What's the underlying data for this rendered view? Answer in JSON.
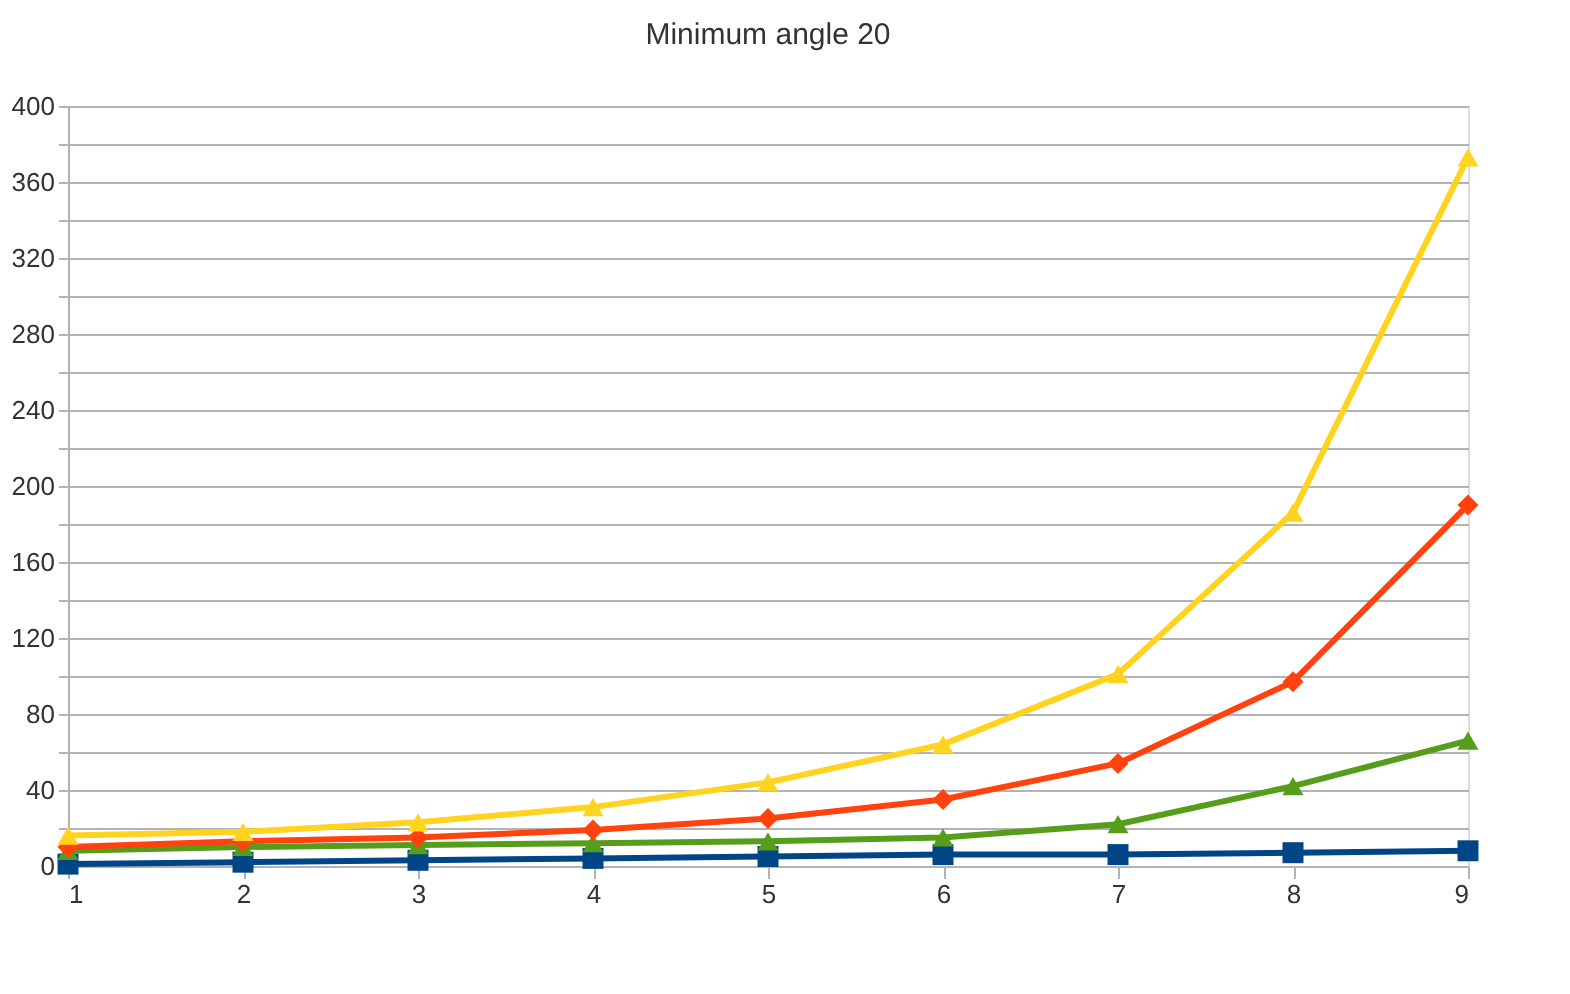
{
  "chart_data": {
    "type": "line",
    "title": "Minimum angle 20",
    "x": [
      1,
      2,
      3,
      4,
      5,
      6,
      7,
      8,
      9
    ],
    "xlim": [
      1,
      9
    ],
    "xticks": [
      1,
      2,
      3,
      4,
      5,
      6,
      7,
      8,
      9
    ],
    "ylim": [
      0,
      400
    ],
    "yticks": [
      0,
      {
        "value": 20,
        "label": null
      },
      40,
      {
        "value": 60,
        "label": null
      },
      80,
      {
        "value": 100,
        "label": null
      },
      120,
      {
        "value": 140,
        "label": null
      },
      160,
      {
        "value": 180,
        "label": null
      },
      200,
      {
        "value": 220,
        "label": null
      },
      240,
      {
        "value": 260,
        "label": null
      },
      280,
      {
        "value": 300,
        "label": null
      },
      320,
      {
        "value": 340,
        "label": null
      },
      360,
      {
        "value": 380,
        "label": null
      },
      400
    ],
    "grid": "y",
    "legend": false,
    "line_style": "solid",
    "series": [
      {
        "color": "#004586",
        "marker": "square",
        "values": [
          1,
          2,
          3,
          4,
          5,
          6,
          6,
          7,
          8
        ]
      },
      {
        "color": "#579d1c",
        "marker": "triangle",
        "values": [
          8,
          10,
          11,
          12,
          13,
          15,
          22,
          42,
          66
        ]
      },
      {
        "color": "#ff420e",
        "marker": "diamond",
        "values": [
          10,
          13,
          15,
          19,
          25,
          35,
          54,
          97,
          190
        ]
      },
      {
        "color": "#ffd320",
        "marker": "triangle",
        "values": [
          16,
          18,
          23,
          31,
          44,
          64,
          101,
          186,
          373
        ]
      }
    ]
  }
}
